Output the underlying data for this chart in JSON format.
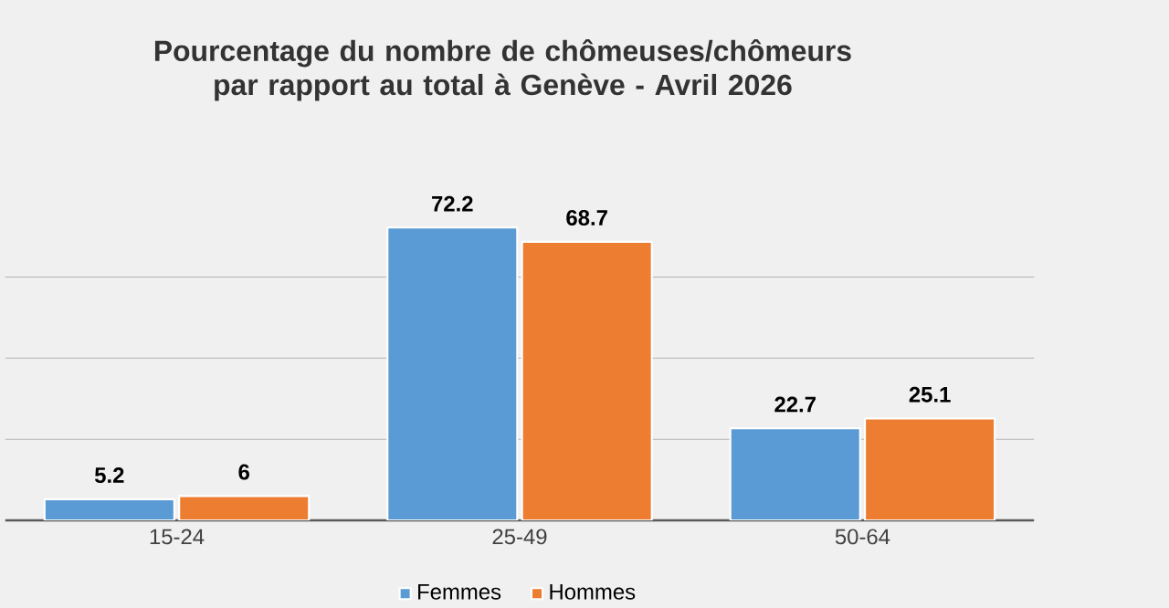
{
  "chart_data": {
    "type": "bar",
    "title": "Pourcentage du nombre de chômeuses/chômeurs par rapport au total à Genève - Avril 2026",
    "categories": [
      "15-24",
      "25-49",
      "50-64"
    ],
    "series": [
      {
        "name": "Femmes",
        "color": "#5b9bd5",
        "values": [
          5.2,
          72.2,
          22.7
        ]
      },
      {
        "name": "Hommes",
        "color": "#ed7d31",
        "values": [
          6,
          68.7,
          25.1
        ]
      }
    ],
    "tick_labels": "x",
    "grid": "y",
    "data_labels": true,
    "legend": "bottom"
  }
}
